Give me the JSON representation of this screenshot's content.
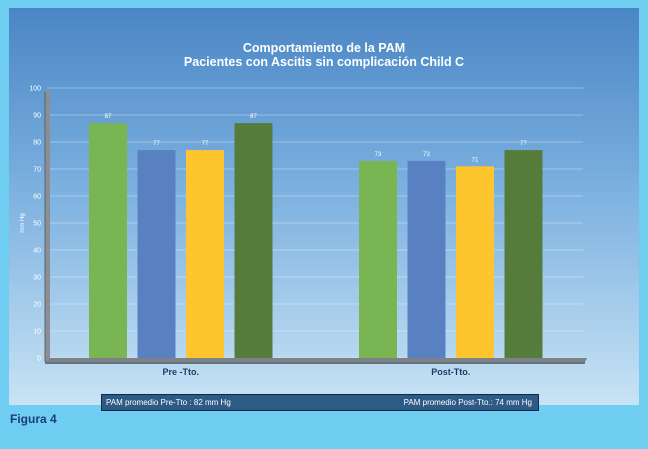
{
  "chart_data": {
    "type": "bar",
    "title_line1": "Comportamiento  de la PAM",
    "title_line2": "Pacientes con Ascitis sin complicación  Child C",
    "ylabel": "mm Hg",
    "ylim": [
      0,
      100
    ],
    "yticks": [
      0,
      10,
      20,
      30,
      40,
      50,
      60,
      70,
      80,
      90,
      100
    ],
    "categories": [
      "Pre -Tto.",
      "Post-Tto."
    ],
    "series": [
      {
        "color": "#7ab554",
        "values": [
          87,
          73
        ]
      },
      {
        "color": "#5981c1",
        "values": [
          77,
          73
        ]
      },
      {
        "color": "#fec52e",
        "values": [
          77,
          71
        ]
      },
      {
        "color": "#567c3c",
        "values": [
          87,
          77
        ]
      }
    ]
  },
  "footer": {
    "pre": "PAM promedio Pre-Tto : 82 mm Hg",
    "post": "PAM  promedio  Post-Tto.: 74 mm Hg"
  },
  "caption": "Figura 4"
}
